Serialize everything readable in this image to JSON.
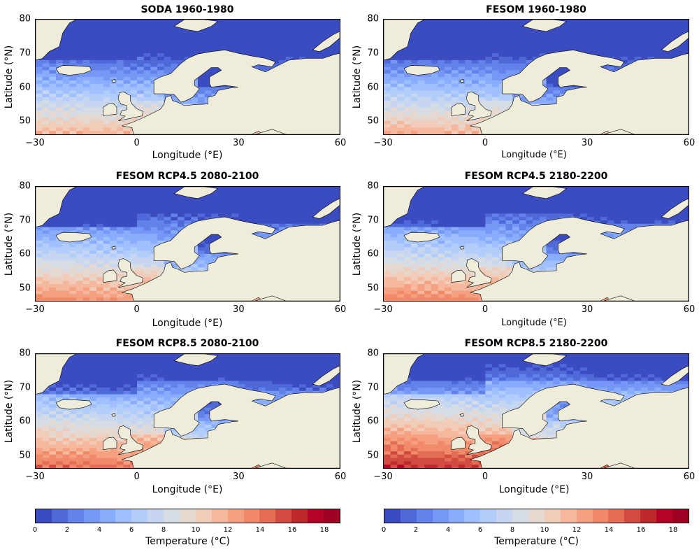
{
  "panels": [
    {
      "title": "SODA 1960-1980",
      "ylabel": "Latitude (°N)",
      "xlabel": "Longitude (°E)",
      "warm": 0.0
    },
    {
      "title": "FESOM 1960-1980",
      "ylabel": "Latitude (°N)",
      "xlabel": "Longitude (°E)",
      "warm": 0.1
    },
    {
      "title": "FESOM RCP4.5 2080-2100",
      "ylabel": "Latitude (°N)",
      "xlabel": "Longitude (°E)",
      "warm": 1.5
    },
    {
      "title": "FESOM RCP4.5 2180-2200",
      "ylabel": "Latitude (°N)",
      "xlabel": "Longitude (°E)",
      "warm": 1.9
    },
    {
      "title": "FESOM RCP8.5 2080-2100",
      "ylabel": "Latitude (°N)",
      "xlabel": "Longitude (°E)",
      "warm": 2.8
    },
    {
      "title": "FESOM RCP8.5 2180-2200",
      "ylabel": "Latitude (°N)",
      "xlabel": "Longitude (°E)",
      "warm": 4.6
    }
  ],
  "axes": {
    "xticks": [
      "−30",
      "0",
      "30",
      "60"
    ],
    "yticks": [
      "80",
      "70",
      "60",
      "50"
    ],
    "lon_range": [
      -30,
      60
    ],
    "lat_range": [
      46,
      80
    ]
  },
  "colorbar": {
    "label": "Temperature (°C)",
    "ticks": [
      "0",
      "2",
      "4",
      "6",
      "8",
      "10",
      "12",
      "14",
      "16",
      "18"
    ],
    "range": [
      0,
      19
    ],
    "colors": [
      "#3b4cc0",
      "#4f69d9",
      "#6282ea",
      "#7597f6",
      "#89acfd",
      "#9fbfff",
      "#b3cdfb",
      "#c6d6f1",
      "#d6dce4",
      "#e5d8d1",
      "#f1ccb8",
      "#f6b89c",
      "#f5a081",
      "#f08a68",
      "#e36c55",
      "#d24b40",
      "#bd2a2d",
      "#b40426",
      "#a00122"
    ],
    "land_color": "#efedda"
  }
}
